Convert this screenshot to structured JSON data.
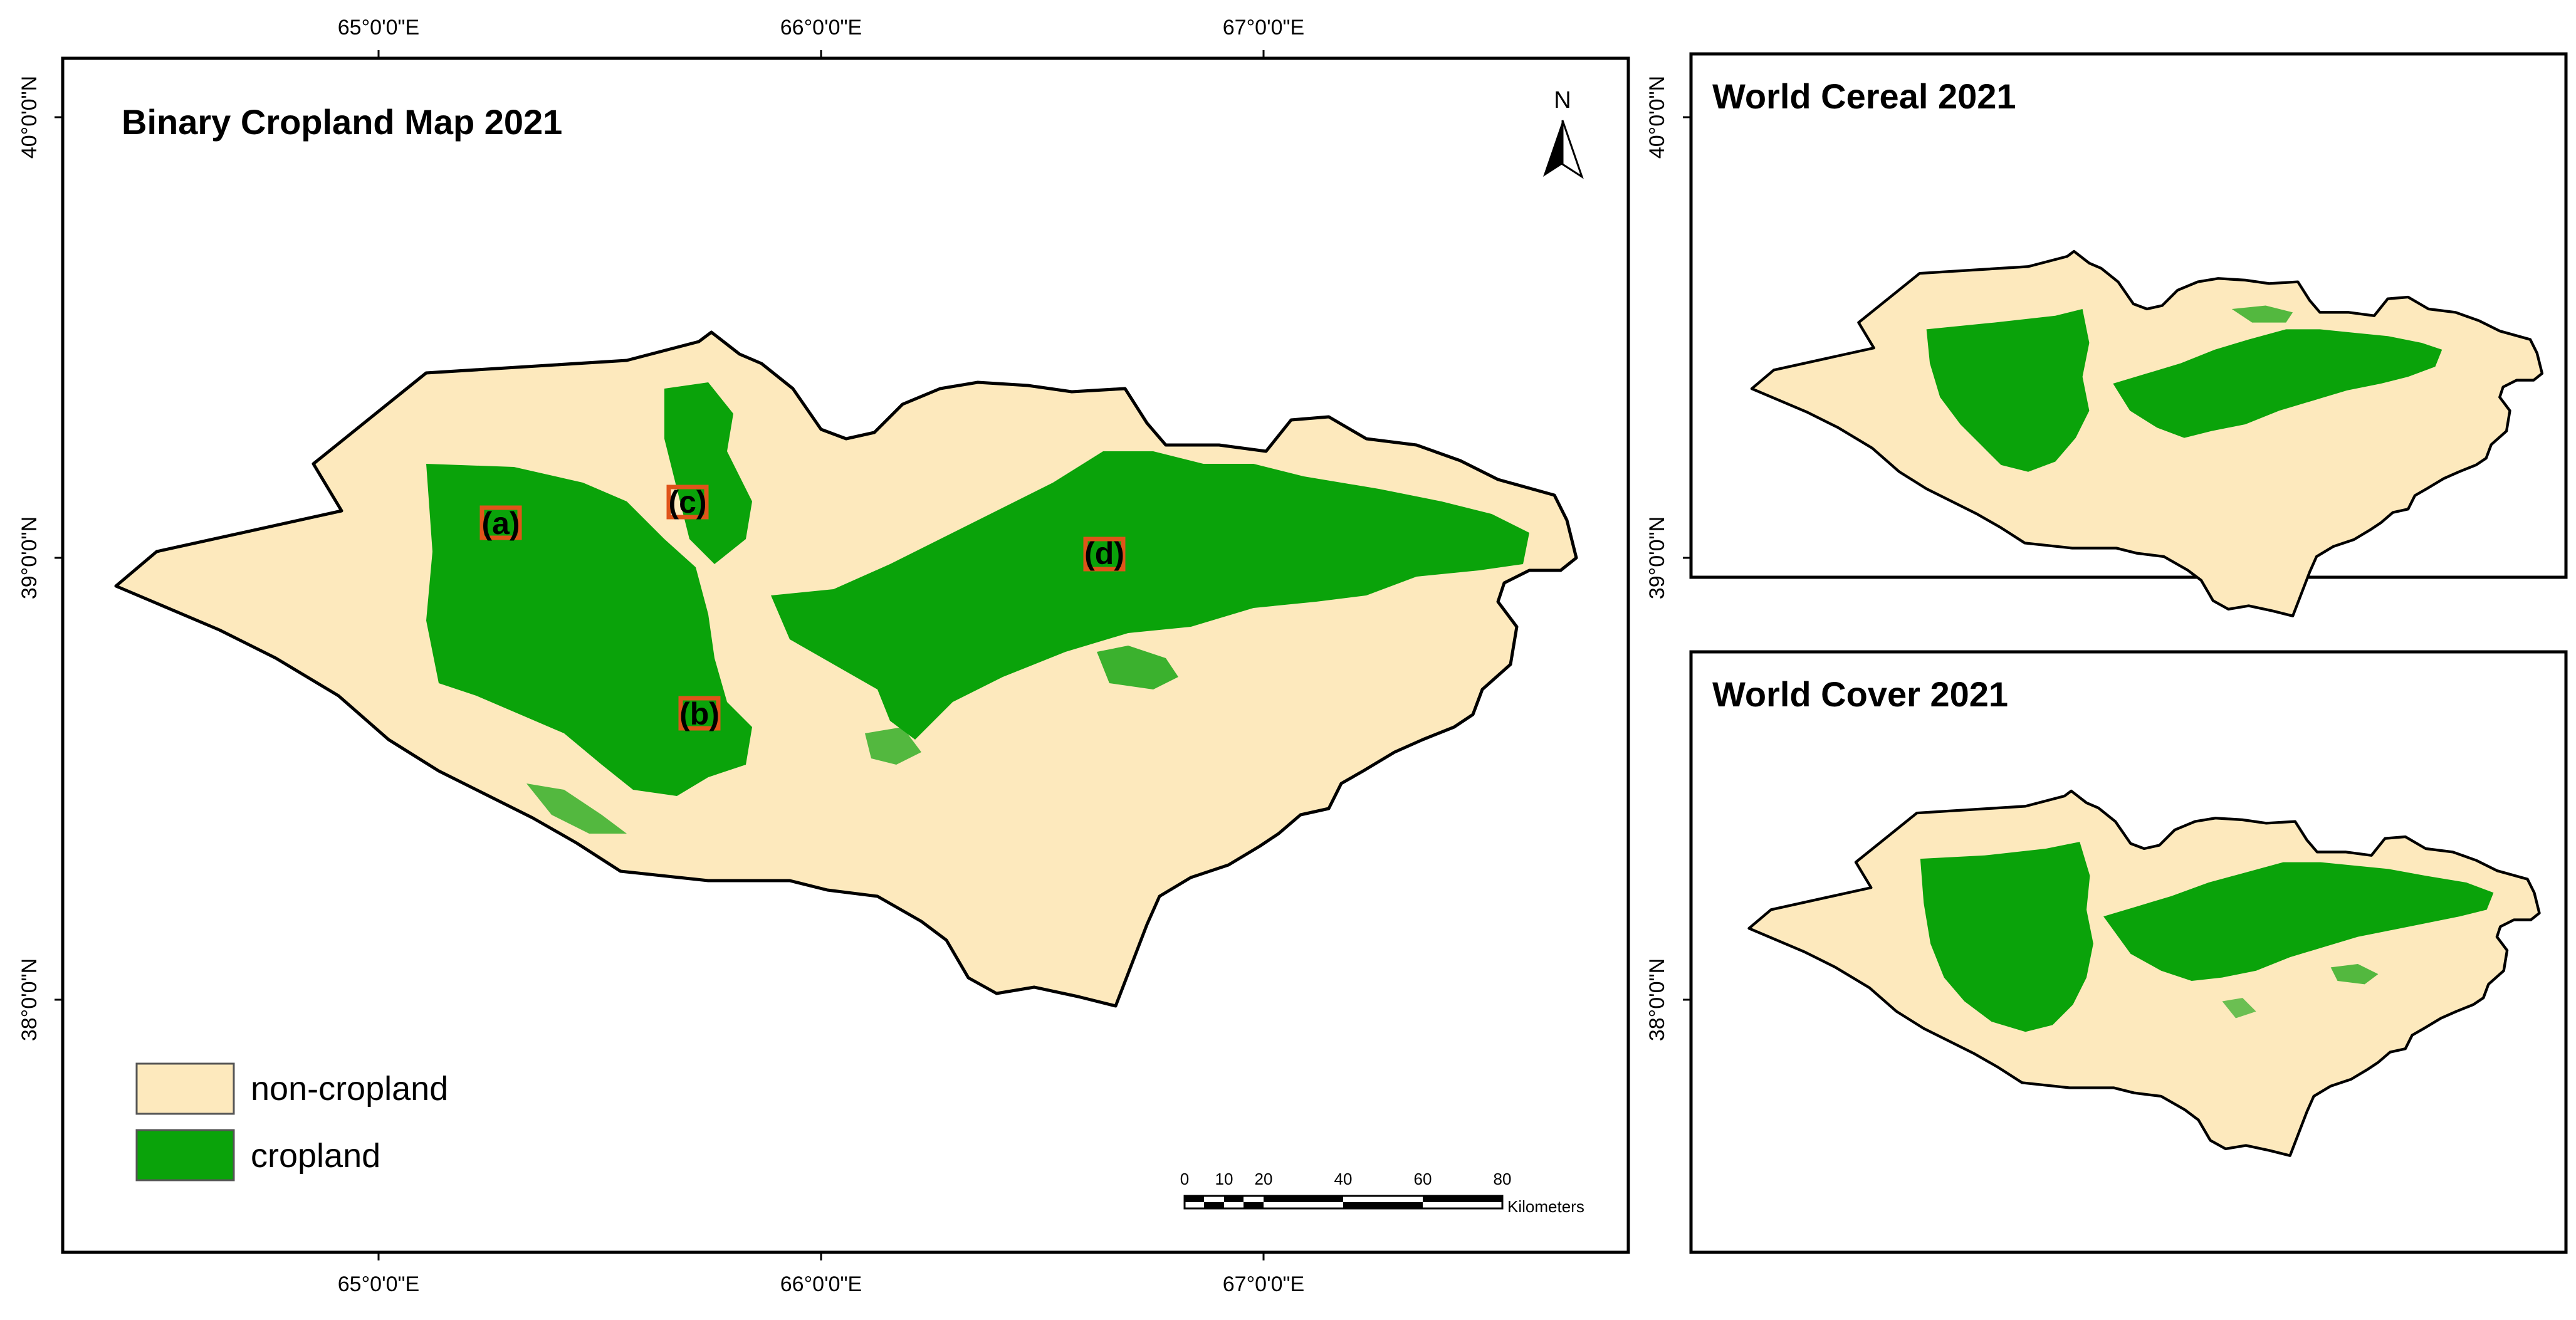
{
  "main_map": {
    "title": "Binary Cropland Map 2021",
    "lon_ticks": [
      "65°0'0\"E",
      "66°0'0\"E",
      "67°0'0\"E"
    ],
    "lat_ticks": [
      "40°0'0\"N",
      "39°0'0\"N",
      "38°0'0\"N"
    ],
    "north_label": "N",
    "site_markers": [
      "(a)",
      "(b)",
      "(c)",
      "(d)"
    ],
    "legend": [
      {
        "label": "non-cropland",
        "color": "#fde9bd"
      },
      {
        "label": "cropland",
        "color": "#0aa30a"
      }
    ],
    "scale_bar": {
      "ticks": [
        "0",
        "10",
        "20",
        "40",
        "60",
        "80"
      ],
      "unit": "Kilometers"
    }
  },
  "inset_top": {
    "title": "World Cereal 2021",
    "lat_ticks": [
      "40°0'0\"N",
      "39°0'0\"N"
    ]
  },
  "inset_bottom": {
    "title": "World Cover 2021",
    "lat_ticks": [
      "38°0'0\"N"
    ]
  },
  "colors": {
    "non_cropland": "#fde9bd",
    "cropland": "#0aa30a",
    "marker_outline": "#e0541a",
    "frame": "#000000"
  }
}
